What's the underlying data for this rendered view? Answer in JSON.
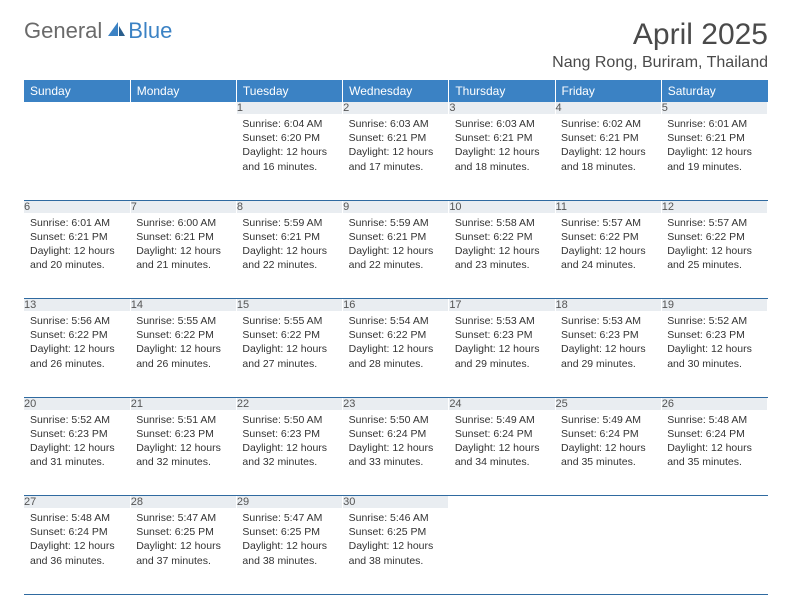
{
  "logo": {
    "text1": "General",
    "text2": "Blue"
  },
  "title": "April 2025",
  "location": "Nang Rong, Buriram, Thailand",
  "colors": {
    "header_bg": "#3b82c4",
    "header_text": "#ffffff",
    "daynum_bg": "#e9edf1",
    "row_border": "#2f6aa0",
    "logo_gray": "#6a6a6a",
    "logo_blue": "#3b82c4"
  },
  "weekdays": [
    "Sunday",
    "Monday",
    "Tuesday",
    "Wednesday",
    "Thursday",
    "Friday",
    "Saturday"
  ],
  "weeks": [
    [
      null,
      null,
      {
        "n": "1",
        "sr": "6:04 AM",
        "ss": "6:20 PM",
        "dl": "12 hours and 16 minutes."
      },
      {
        "n": "2",
        "sr": "6:03 AM",
        "ss": "6:21 PM",
        "dl": "12 hours and 17 minutes."
      },
      {
        "n": "3",
        "sr": "6:03 AM",
        "ss": "6:21 PM",
        "dl": "12 hours and 18 minutes."
      },
      {
        "n": "4",
        "sr": "6:02 AM",
        "ss": "6:21 PM",
        "dl": "12 hours and 18 minutes."
      },
      {
        "n": "5",
        "sr": "6:01 AM",
        "ss": "6:21 PM",
        "dl": "12 hours and 19 minutes."
      }
    ],
    [
      {
        "n": "6",
        "sr": "6:01 AM",
        "ss": "6:21 PM",
        "dl": "12 hours and 20 minutes."
      },
      {
        "n": "7",
        "sr": "6:00 AM",
        "ss": "6:21 PM",
        "dl": "12 hours and 21 minutes."
      },
      {
        "n": "8",
        "sr": "5:59 AM",
        "ss": "6:21 PM",
        "dl": "12 hours and 22 minutes."
      },
      {
        "n": "9",
        "sr": "5:59 AM",
        "ss": "6:21 PM",
        "dl": "12 hours and 22 minutes."
      },
      {
        "n": "10",
        "sr": "5:58 AM",
        "ss": "6:22 PM",
        "dl": "12 hours and 23 minutes."
      },
      {
        "n": "11",
        "sr": "5:57 AM",
        "ss": "6:22 PM",
        "dl": "12 hours and 24 minutes."
      },
      {
        "n": "12",
        "sr": "5:57 AM",
        "ss": "6:22 PM",
        "dl": "12 hours and 25 minutes."
      }
    ],
    [
      {
        "n": "13",
        "sr": "5:56 AM",
        "ss": "6:22 PM",
        "dl": "12 hours and 26 minutes."
      },
      {
        "n": "14",
        "sr": "5:55 AM",
        "ss": "6:22 PM",
        "dl": "12 hours and 26 minutes."
      },
      {
        "n": "15",
        "sr": "5:55 AM",
        "ss": "6:22 PM",
        "dl": "12 hours and 27 minutes."
      },
      {
        "n": "16",
        "sr": "5:54 AM",
        "ss": "6:22 PM",
        "dl": "12 hours and 28 minutes."
      },
      {
        "n": "17",
        "sr": "5:53 AM",
        "ss": "6:23 PM",
        "dl": "12 hours and 29 minutes."
      },
      {
        "n": "18",
        "sr": "5:53 AM",
        "ss": "6:23 PM",
        "dl": "12 hours and 29 minutes."
      },
      {
        "n": "19",
        "sr": "5:52 AM",
        "ss": "6:23 PM",
        "dl": "12 hours and 30 minutes."
      }
    ],
    [
      {
        "n": "20",
        "sr": "5:52 AM",
        "ss": "6:23 PM",
        "dl": "12 hours and 31 minutes."
      },
      {
        "n": "21",
        "sr": "5:51 AM",
        "ss": "6:23 PM",
        "dl": "12 hours and 32 minutes."
      },
      {
        "n": "22",
        "sr": "5:50 AM",
        "ss": "6:23 PM",
        "dl": "12 hours and 32 minutes."
      },
      {
        "n": "23",
        "sr": "5:50 AM",
        "ss": "6:24 PM",
        "dl": "12 hours and 33 minutes."
      },
      {
        "n": "24",
        "sr": "5:49 AM",
        "ss": "6:24 PM",
        "dl": "12 hours and 34 minutes."
      },
      {
        "n": "25",
        "sr": "5:49 AM",
        "ss": "6:24 PM",
        "dl": "12 hours and 35 minutes."
      },
      {
        "n": "26",
        "sr": "5:48 AM",
        "ss": "6:24 PM",
        "dl": "12 hours and 35 minutes."
      }
    ],
    [
      {
        "n": "27",
        "sr": "5:48 AM",
        "ss": "6:24 PM",
        "dl": "12 hours and 36 minutes."
      },
      {
        "n": "28",
        "sr": "5:47 AM",
        "ss": "6:25 PM",
        "dl": "12 hours and 37 minutes."
      },
      {
        "n": "29",
        "sr": "5:47 AM",
        "ss": "6:25 PM",
        "dl": "12 hours and 38 minutes."
      },
      {
        "n": "30",
        "sr": "5:46 AM",
        "ss": "6:25 PM",
        "dl": "12 hours and 38 minutes."
      },
      null,
      null,
      null
    ]
  ],
  "labels": {
    "sunrise": "Sunrise:",
    "sunset": "Sunset:",
    "daylight": "Daylight:"
  }
}
